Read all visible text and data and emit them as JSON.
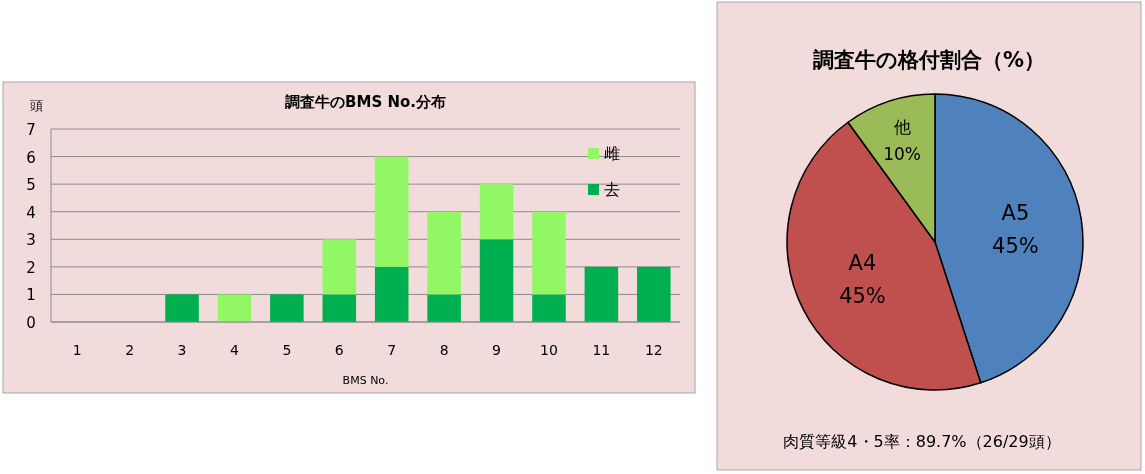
{
  "chart_data": [
    {
      "type": "bar",
      "title": "調査牛のBMS No.分布",
      "xlabel": "BMS No.",
      "ylabel": "頭",
      "categories": [
        "1",
        "2",
        "3",
        "4",
        "5",
        "6",
        "7",
        "8",
        "9",
        "10",
        "11",
        "12"
      ],
      "stacked": true,
      "series": [
        {
          "name": "去",
          "color": "#00b050",
          "values": [
            0,
            0,
            1,
            0,
            1,
            1,
            2,
            1,
            3,
            1,
            2,
            2
          ]
        },
        {
          "name": "雌",
          "color": "#92f765",
          "values": [
            0,
            0,
            0,
            1,
            0,
            2,
            4,
            3,
            2,
            3,
            0,
            0
          ]
        }
      ],
      "ylim": [
        0,
        7
      ],
      "yticks": [
        0,
        1,
        2,
        3,
        4,
        5,
        6,
        7
      ],
      "grid": "y",
      "legend": "top right"
    },
    {
      "type": "pie",
      "title": "調査牛の格付割合（%）",
      "categories": [
        "A5",
        "A4",
        "他"
      ],
      "values": [
        45,
        45,
        10
      ],
      "colors": [
        "#4f81bd",
        "#c0504d",
        "#9bbb59"
      ],
      "value_labels": [
        "45%",
        "45%",
        "10%"
      ],
      "annotations": [
        "肉質等級4・5率：89.7%（26/29頭）"
      ]
    }
  ]
}
